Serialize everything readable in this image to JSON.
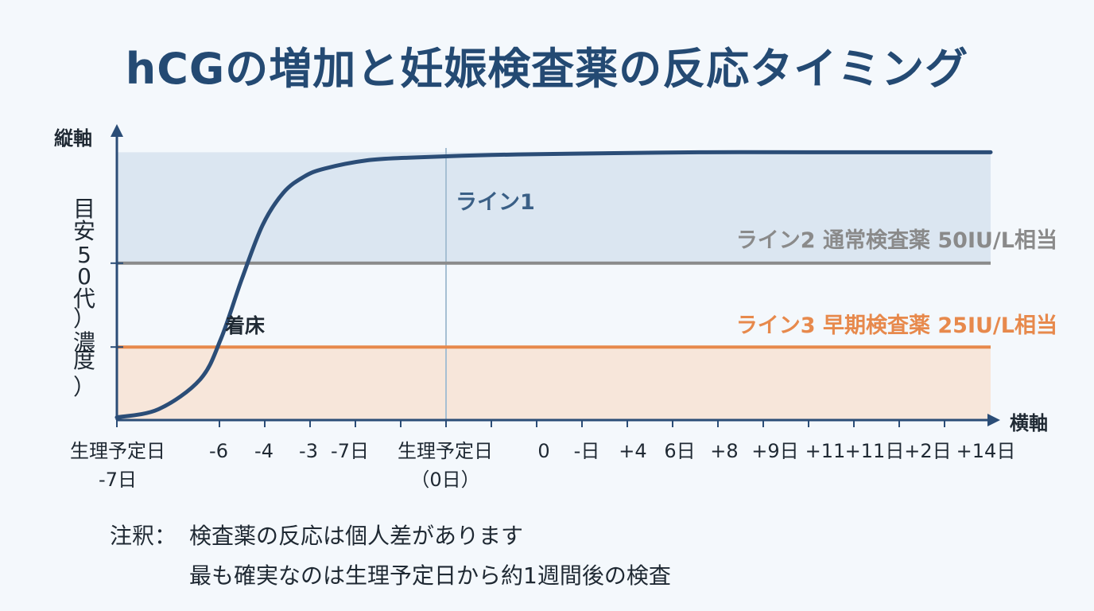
{
  "title": "hCGの増加と妊娠検査薬の反応タイミング",
  "chart_data": {
    "type": "area",
    "y_axis_title": "縦軸",
    "y_axis_label": "目安50代）濃度）",
    "x_axis_title": "横軸",
    "x_ticks": [
      "生理予定日\n-7日",
      "-6",
      "-4",
      "-3",
      "-7日",
      "生理予定日\n（0日）",
      "0",
      "-日",
      "+4",
      "6日",
      "+8",
      "+9日",
      "+11",
      "+11日",
      "+2日",
      "+14日"
    ],
    "ylim": [
      0,
      100
    ],
    "series": [
      {
        "name": "",
        "x": [
          -7,
          -6,
          -5,
          -4.5,
          -4,
          -3.5,
          -3,
          -2.5,
          -2,
          -1,
          0,
          2,
          4,
          7,
          10,
          14
        ],
        "y": [
          1,
          4,
          15,
          30,
          52,
          72,
          84,
          90,
          93,
          96,
          97,
          98,
          98.5,
          99,
          99,
          99
        ]
      }
    ],
    "thresholds": [
      {
        "label": "ライン2 通常検査薬 50IU/L相当",
        "value": 58,
        "color": "#8a8a8a"
      },
      {
        "label": "ライン3 早期検査薬 25IU/L相当",
        "value": 27,
        "color": "#e7894c"
      }
    ],
    "vertical_marker": {
      "label": "ライン1",
      "x": 0
    },
    "annotations": [
      {
        "text": "着床",
        "x": -4.8,
        "y": 36
      }
    ],
    "colors": {
      "curve": "#2b4d77",
      "upper_fill": "#dbe6f1",
      "lower_fill": "#f7e6da",
      "axis": "#2b4d77",
      "marker": "#a6bfd3",
      "threshold2": "#8a8a8a",
      "threshold3": "#e7894c"
    }
  },
  "notes": {
    "prefix": "注釈：",
    "line1": "検査薬の反応は個人差があります",
    "line2": "最も確実なのは生理予定日から約1週間後の検査"
  }
}
